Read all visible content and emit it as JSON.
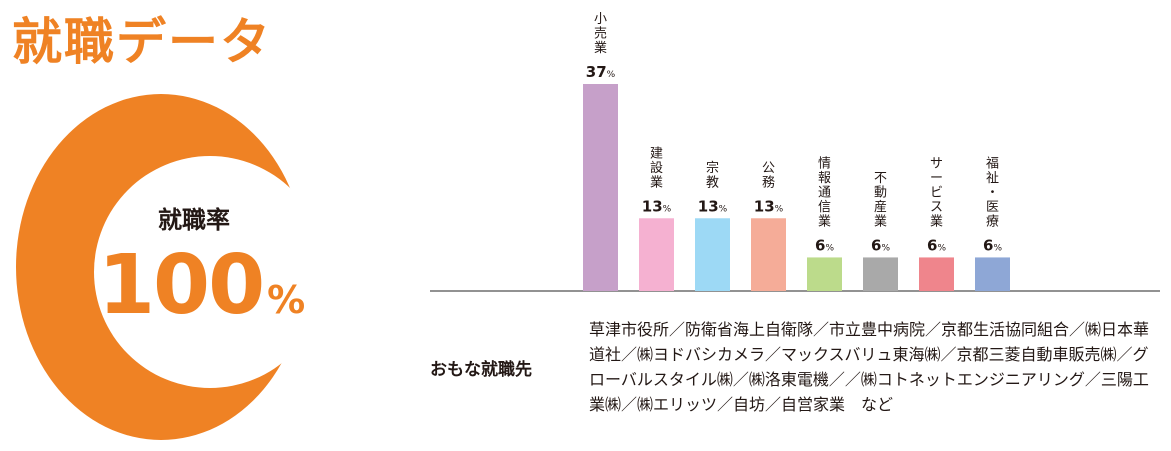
{
  "page": {
    "title": "就職データ"
  },
  "employment_rate": {
    "label": "就職率",
    "value": "100",
    "unit": "%"
  },
  "employers": {
    "label": "おもな就職先",
    "text": "草津市役所／防衛省海上自衛隊／市立豊中病院／京都生活協同組合／㈱日本華道社／㈱ヨドバシカメラ／マックスバリュ東海㈱／京都三菱自動車販売㈱／グローバルスタイル㈱／㈱洛東電機／／㈱コトネットエンジニアリング／三陽工業㈱／㈱エリッツ／自坊／自営家業　など"
  },
  "chart_data": {
    "type": "bar",
    "title": "",
    "xlabel": "",
    "ylabel": "",
    "value_unit": "%",
    "ylim": [
      0,
      37
    ],
    "categories": [
      "小売業",
      "建設業",
      "宗教",
      "公務",
      "情報通信業",
      "不動産業",
      "サービス業",
      "福祉・医療"
    ],
    "values": [
      37,
      13,
      13,
      13,
      6,
      6,
      6,
      6
    ],
    "colors": [
      "#c6a0c9",
      "#f5b1d1",
      "#9dd9f5",
      "#f5ac98",
      "#bcdb8b",
      "#a9a9a9",
      "#ef858c",
      "#8ea7d6"
    ]
  }
}
